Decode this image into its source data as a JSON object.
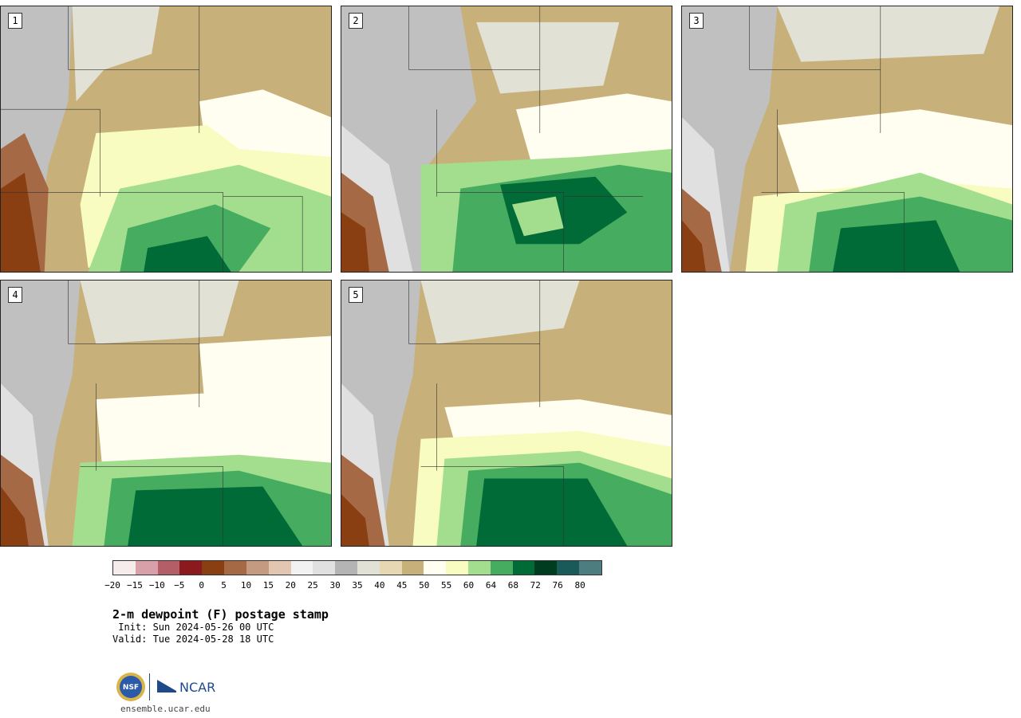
{
  "panels": [
    {
      "label": "1"
    },
    {
      "label": "2"
    },
    {
      "label": "3"
    },
    {
      "label": "4"
    },
    {
      "label": "5"
    }
  ],
  "colorbar": {
    "colors": [
      "#f6ecec",
      "#d8a0a8",
      "#b45f68",
      "#8b1a1f",
      "#8a3f12",
      "#a56a45",
      "#c49a80",
      "#e2c6b2",
      "#f2f2f2",
      "#e0e0e0",
      "#b4b4b4",
      "#e1e1d5",
      "#e7d8b3",
      "#c8b07a",
      "#fffef0",
      "#f8fcc0",
      "#a3de8e",
      "#46ad60",
      "#006b36",
      "#003d20",
      "#1a5a58",
      "#4e7d80"
    ],
    "ticks": [
      "−20",
      "−15",
      "−10",
      "−5",
      "0",
      "5",
      "10",
      "15",
      "20",
      "25",
      "30",
      "35",
      "40",
      "45",
      "50",
      "55",
      "60",
      "64",
      "68",
      "72",
      "76",
      "80"
    ]
  },
  "title": "2-m dewpoint (F) postage stamp",
  "init": " Init: Sun 2024-05-26 00 UTC",
  "valid": "Valid: Tue 2024-05-28 18 UTC",
  "logo": {
    "nsf_text": "NSF",
    "ncar_text": "NCAR"
  },
  "website": "ensemble.ucar.edu"
}
